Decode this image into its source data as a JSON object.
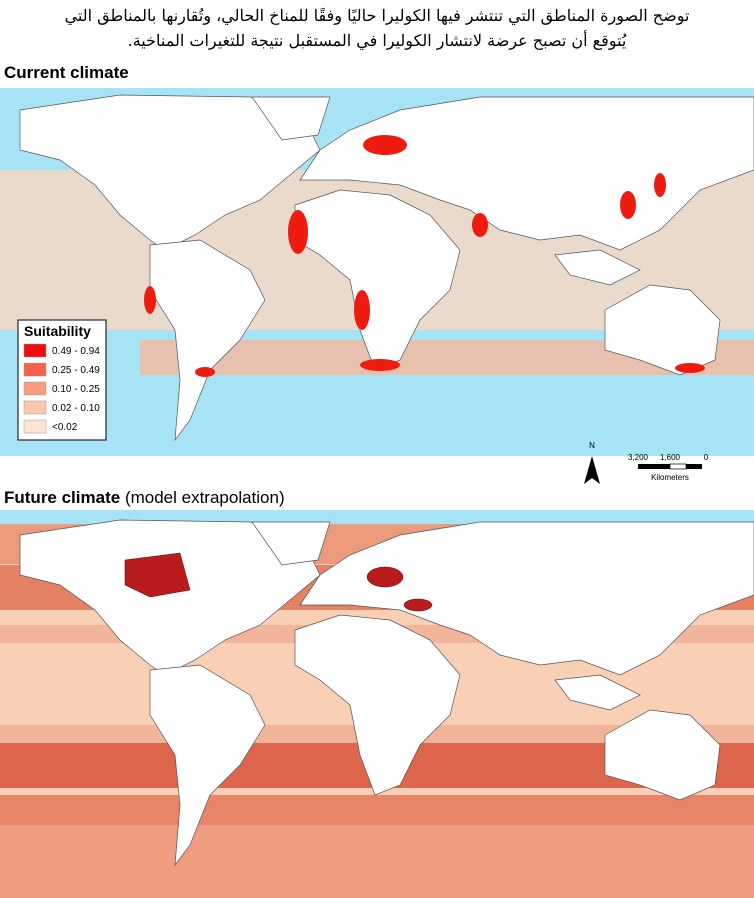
{
  "caption": {
    "lines": [
      "توضح الصورة المناطق التي تنتشر فيها الكوليرا حاليًا وفقًا للمناخ الحالي، وتُقارنها بالمناطق التي",
      "يُتوقع أن تصبح عرضة لانتشار الكوليرا في المستقبل نتيجة للتغيرات المناخية."
    ]
  },
  "panels": [
    {
      "title": "Current climate"
    },
    {
      "title": "Future climate",
      "subtitle": "(model extrapolation)"
    }
  ],
  "legend": {
    "title": "Suitability",
    "items": [
      {
        "label": "0.49 - 0.94",
        "color": "#f00d0d"
      },
      {
        "label": "0.25 - 0.49",
        "color": "#f4644a"
      },
      {
        "label": "0.10 - 0.25",
        "color": "#f79c7c"
      },
      {
        "label": "0.02 - 0.10",
        "color": "#f9c8ae"
      },
      {
        "label": "<0.02",
        "color": "#fde5d6"
      }
    ]
  },
  "north_arrow": "N",
  "scale": {
    "labels": [
      "3,200",
      "1,600",
      "0"
    ],
    "unit": "Kilometers"
  }
}
